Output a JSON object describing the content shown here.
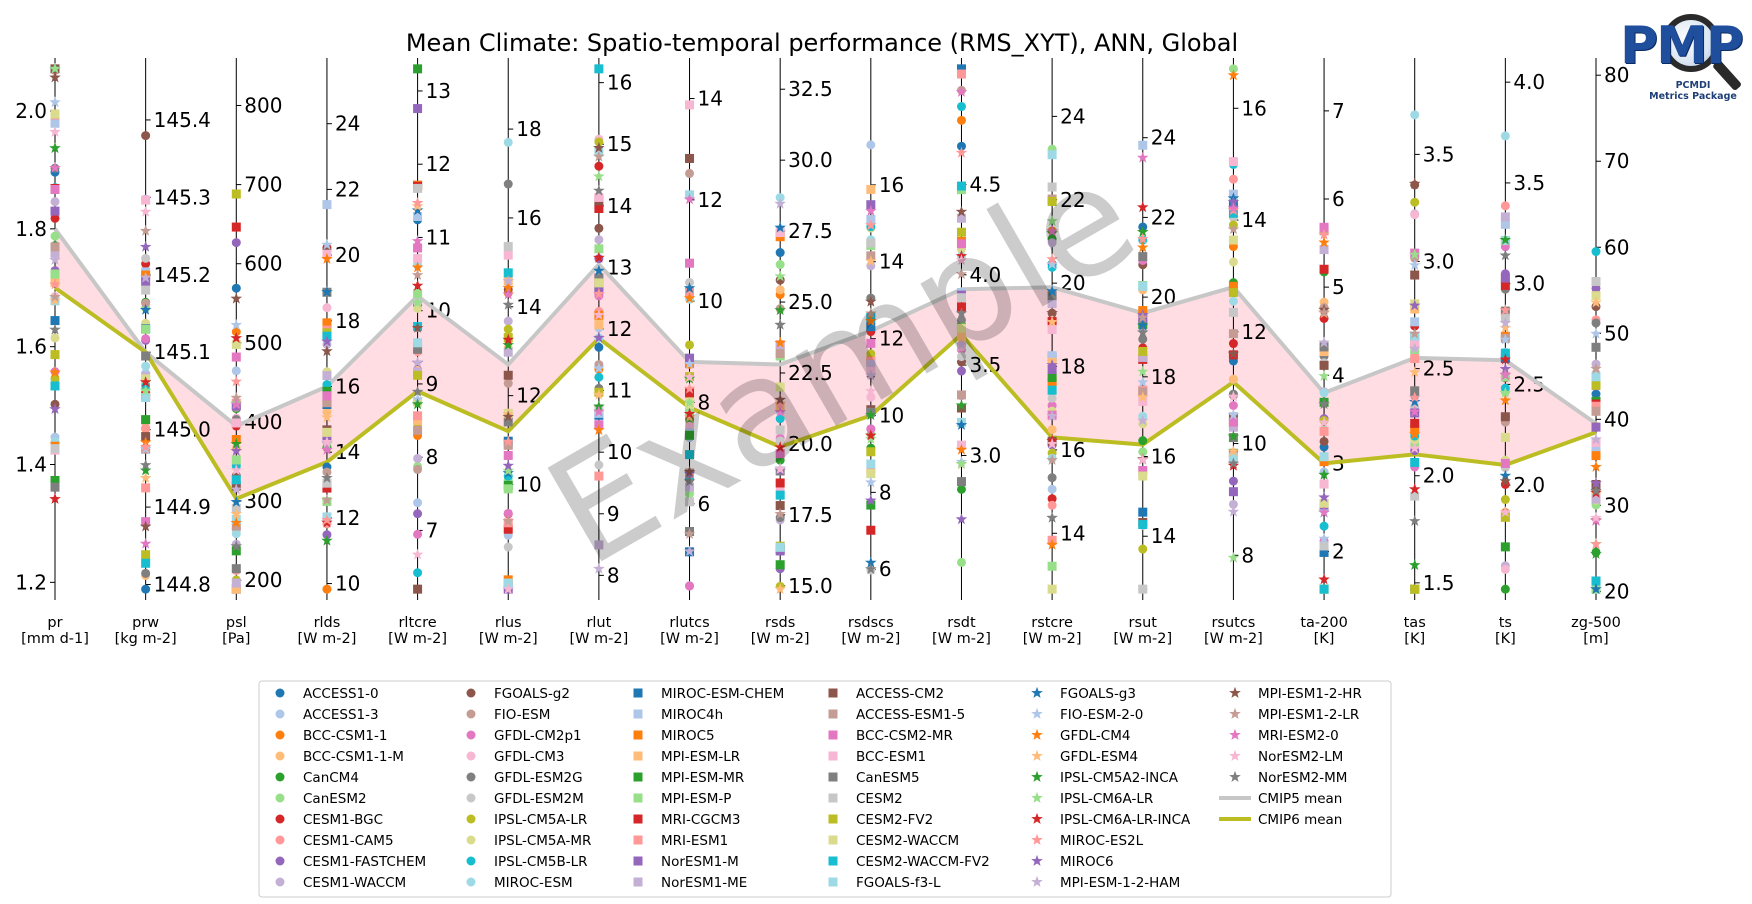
{
  "title": "Mean Climate: Spatio-temporal performance (RMS_XYT), ANN, Global",
  "watermark": "Example",
  "logo": {
    "text": "PMP",
    "line1": "PCMDI",
    "line2": "Metrics Package"
  },
  "colors": {
    "cmip5_line": "#c7c7c7",
    "cmip6_line": "#bcbd22",
    "fill_between": "#ffdde3",
    "model_palette": [
      "#1f77b4",
      "#aec7e8",
      "#ff7f0e",
      "#ffbb78",
      "#2ca02c",
      "#98df8a",
      "#d62728",
      "#ff9896",
      "#9467bd",
      "#c5b0d5",
      "#8c564b",
      "#c49c94",
      "#e377c2",
      "#f7b6d2",
      "#7f7f7f",
      "#c7c7c7",
      "#bcbd22",
      "#dbdb8d",
      "#17becf",
      "#9edae5"
    ]
  },
  "chart_data": {
    "type": "parallel_coordinates",
    "axes": [
      {
        "name": "pr",
        "unit": "[mm d-1]",
        "ylim": [
          1.17,
          2.09
        ],
        "ticks": [
          "1.2",
          "1.4",
          "1.6",
          "1.8",
          "2.0"
        ],
        "tick_side": "left"
      },
      {
        "name": "prw",
        "unit": "[kg m-2]",
        "ylim": [
          144.78,
          145.48
        ],
        "ticks": [
          "144.8",
          "144.9",
          "145.0",
          "145.1",
          "145.2",
          "145.3",
          "145.4"
        ],
        "tick_side": "right"
      },
      {
        "name": "psl",
        "unit": "[Pa]",
        "ylim": [
          175,
          860
        ],
        "ticks": [
          "200",
          "300",
          "400",
          "500",
          "600",
          "700",
          "800"
        ],
        "tick_side": "right"
      },
      {
        "name": "rlds",
        "unit": "[W m-2]",
        "ylim": [
          9.5,
          26.0
        ],
        "ticks": [
          "10",
          "12",
          "14",
          "16",
          "18",
          "20",
          "22",
          "24"
        ],
        "tick_side": "right"
      },
      {
        "name": "rltcre",
        "unit": "[W m-2]",
        "ylim": [
          6.05,
          13.45
        ],
        "ticks": [
          "7",
          "8",
          "9",
          "10",
          "11",
          "12",
          "13"
        ],
        "tick_side": "right"
      },
      {
        "name": "rlus",
        "unit": "[W m-2]",
        "ylim": [
          7.4,
          19.6
        ],
        "ticks": [
          "10",
          "12",
          "14",
          "16",
          "18"
        ],
        "tick_side": "right"
      },
      {
        "name": "rlut",
        "unit": "[W m-2]",
        "ylim": [
          7.6,
          16.4
        ],
        "ticks": [
          "8",
          "9",
          "10",
          "11",
          "12",
          "13",
          "14",
          "15",
          "16"
        ],
        "tick_side": "right"
      },
      {
        "name": "rlutcs",
        "unit": "[W m-2]",
        "ylim": [
          4.1,
          14.8
        ],
        "ticks": [
          "6",
          "8",
          "10",
          "12",
          "14"
        ],
        "tick_side": "right"
      },
      {
        "name": "rsds",
        "unit": "[W m-2]",
        "ylim": [
          14.5,
          33.6
        ],
        "ticks": [
          "15.0",
          "17.5",
          "20.0",
          "22.5",
          "25.0",
          "27.5",
          "30.0",
          "32.5"
        ],
        "tick_side": "right"
      },
      {
        "name": "rsdscs",
        "unit": "[W m-2]",
        "ylim": [
          5.2,
          19.3
        ],
        "ticks": [
          "6",
          "8",
          "10",
          "12",
          "14",
          "16"
        ],
        "tick_side": "right"
      },
      {
        "name": "rsdt",
        "unit": "[W m-2]",
        "ylim": [
          2.2,
          5.2
        ],
        "ticks": [
          "3.0",
          "3.5",
          "4.0",
          "4.5"
        ],
        "tick_side": "right"
      },
      {
        "name": "rstcre",
        "unit": "[W m-2]",
        "ylim": [
          12.4,
          25.4
        ],
        "ticks": [
          "14",
          "16",
          "18",
          "20",
          "22",
          "24"
        ],
        "tick_side": "right"
      },
      {
        "name": "rsut",
        "unit": "[W m-2]",
        "ylim": [
          12.4,
          26.0
        ],
        "ticks": [
          "14",
          "16",
          "18",
          "20",
          "22",
          "24"
        ],
        "tick_side": "right"
      },
      {
        "name": "rsutcs",
        "unit": "[W m-2]",
        "ylim": [
          7.2,
          16.9
        ],
        "ticks": [
          "8",
          "10",
          "12",
          "14",
          "16"
        ],
        "tick_side": "right"
      },
      {
        "name": "ta-200",
        "unit": "[K]",
        "ylim": [
          1.45,
          7.6
        ],
        "ticks": [
          "2",
          "3",
          "4",
          "5",
          "6",
          "7"
        ],
        "tick_side": "right"
      },
      {
        "name": "tas",
        "unit": "[K]",
        "ylim": [
          1.42,
          3.95
        ],
        "ticks": [
          "1.5",
          "2.0",
          "2.5",
          "3.0",
          "3.5"
        ],
        "tick_side": "right"
      },
      {
        "name": "ts",
        "unit": "[K]",
        "ylim": [
          1.43,
          4.12
        ],
        "ticks": [
          "2.0",
          "2.5",
          "3.0",
          "3.5",
          "4.0"
        ],
        "tick_side": "right"
      },
      {
        "name": "zg-500",
        "unit": "[m]",
        "ylim": [
          19,
          82
        ],
        "ticks": [
          "20",
          "30",
          "40",
          "50",
          "60",
          "70",
          "80"
        ],
        "tick_side": "right"
      }
    ],
    "series": [
      {
        "name": "CMIP5 mean",
        "values": [
          1.8,
          145.1,
          395,
          16.0,
          10.2,
          12.7,
          13.05,
          8.8,
          22.8,
          12.2,
          3.92,
          19.9,
          19.6,
          12.8,
          3.8,
          2.55,
          2.62,
          39.5
        ]
      },
      {
        "name": "CMIP6 mean",
        "values": [
          1.7,
          145.1,
          303,
          13.7,
          8.9,
          11.2,
          11.85,
          7.9,
          19.9,
          10.0,
          3.67,
          16.3,
          16.3,
          11.1,
          3.0,
          2.1,
          2.1,
          38.5
        ]
      }
    ],
    "models": [
      {
        "name": "ACCESS1-0",
        "marker": "circle"
      },
      {
        "name": "ACCESS1-3",
        "marker": "circle"
      },
      {
        "name": "BCC-CSM1-1",
        "marker": "circle"
      },
      {
        "name": "BCC-CSM1-1-M",
        "marker": "circle"
      },
      {
        "name": "CanCM4",
        "marker": "circle"
      },
      {
        "name": "CanESM2",
        "marker": "circle"
      },
      {
        "name": "CESM1-BGC",
        "marker": "circle"
      },
      {
        "name": "CESM1-CAM5",
        "marker": "circle"
      },
      {
        "name": "CESM1-FASTCHEM",
        "marker": "circle"
      },
      {
        "name": "CESM1-WACCM",
        "marker": "circle"
      },
      {
        "name": "FGOALS-g2",
        "marker": "circle"
      },
      {
        "name": "FIO-ESM",
        "marker": "circle"
      },
      {
        "name": "GFDL-CM2p1",
        "marker": "circle"
      },
      {
        "name": "GFDL-CM3",
        "marker": "circle"
      },
      {
        "name": "GFDL-ESM2G",
        "marker": "circle"
      },
      {
        "name": "GFDL-ESM2M",
        "marker": "circle"
      },
      {
        "name": "IPSL-CM5A-LR",
        "marker": "circle"
      },
      {
        "name": "IPSL-CM5A-MR",
        "marker": "circle"
      },
      {
        "name": "IPSL-CM5B-LR",
        "marker": "circle"
      },
      {
        "name": "MIROC-ESM",
        "marker": "circle"
      },
      {
        "name": "MIROC-ESM-CHEM",
        "marker": "square"
      },
      {
        "name": "MIROC4h",
        "marker": "square"
      },
      {
        "name": "MIROC5",
        "marker": "square"
      },
      {
        "name": "MPI-ESM-LR",
        "marker": "square"
      },
      {
        "name": "MPI-ESM-MR",
        "marker": "square"
      },
      {
        "name": "MPI-ESM-P",
        "marker": "square"
      },
      {
        "name": "MRI-CGCM3",
        "marker": "square"
      },
      {
        "name": "MRI-ESM1",
        "marker": "square"
      },
      {
        "name": "NorESM1-M",
        "marker": "square"
      },
      {
        "name": "NorESM1-ME",
        "marker": "square"
      },
      {
        "name": "ACCESS-CM2",
        "marker": "square"
      },
      {
        "name": "ACCESS-ESM1-5",
        "marker": "square"
      },
      {
        "name": "BCC-CSM2-MR",
        "marker": "square"
      },
      {
        "name": "BCC-ESM1",
        "marker": "square"
      },
      {
        "name": "CanESM5",
        "marker": "square"
      },
      {
        "name": "CESM2",
        "marker": "square"
      },
      {
        "name": "CESM2-FV2",
        "marker": "square"
      },
      {
        "name": "CESM2-WACCM",
        "marker": "square"
      },
      {
        "name": "CESM2-WACCM-FV2",
        "marker": "square"
      },
      {
        "name": "FGOALS-f3-L",
        "marker": "square"
      },
      {
        "name": "FGOALS-g3",
        "marker": "star"
      },
      {
        "name": "FIO-ESM-2-0",
        "marker": "star"
      },
      {
        "name": "GFDL-CM4",
        "marker": "star"
      },
      {
        "name": "GFDL-ESM4",
        "marker": "star"
      },
      {
        "name": "IPSL-CM5A2-INCA",
        "marker": "star"
      },
      {
        "name": "IPSL-CM6A-LR",
        "marker": "star"
      },
      {
        "name": "IPSL-CM6A-LR-INCA",
        "marker": "star"
      },
      {
        "name": "MIROC-ES2L",
        "marker": "star"
      },
      {
        "name": "MIROC6",
        "marker": "star"
      },
      {
        "name": "MPI-ESM-1-2-HAM",
        "marker": "star"
      },
      {
        "name": "MPI-ESM1-2-HR",
        "marker": "star"
      },
      {
        "name": "MPI-ESM1-2-LR",
        "marker": "star"
      },
      {
        "name": "MRI-ESM2-0",
        "marker": "star"
      },
      {
        "name": "NorESM2-LM",
        "marker": "star"
      },
      {
        "name": "NorESM2-MM",
        "marker": "star"
      }
    ],
    "grid": false,
    "legend": "bottom-center"
  }
}
